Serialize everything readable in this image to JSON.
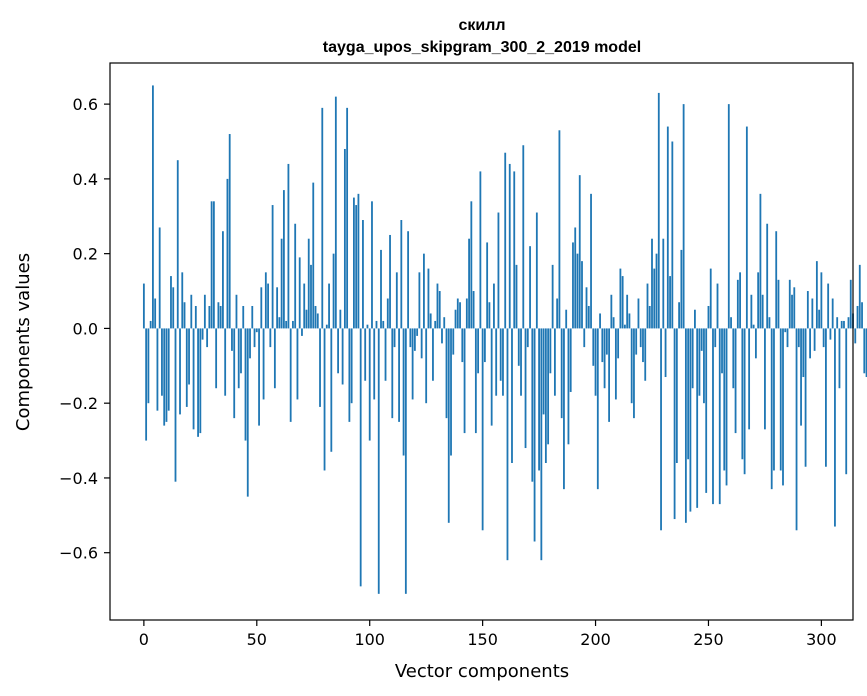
{
  "chart_data": {
    "type": "bar",
    "title": "скилл",
    "subtitle": "tayga_upos_skipgram_300_2_2019 model",
    "xlabel": "Vector components",
    "ylabel": "Components values",
    "xlim": [
      -15,
      314
    ],
    "ylim": [
      -0.78,
      0.71
    ],
    "x_ticks": [
      0,
      50,
      100,
      150,
      200,
      250,
      300
    ],
    "y_ticks": [
      -0.6,
      -0.4,
      -0.2,
      0.0,
      0.2,
      0.4,
      0.6
    ],
    "x_tick_labels": [
      "0",
      "50",
      "100",
      "150",
      "200",
      "250",
      "300"
    ],
    "y_tick_labels": [
      "−0.6",
      "−0.4",
      "−0.2",
      "0.0",
      "0.2",
      "0.4",
      "0.6"
    ],
    "bar_color": "#1f77b4",
    "values": [
      0.12,
      -0.3,
      -0.2,
      0.02,
      0.65,
      0.08,
      -0.22,
      0.27,
      -0.18,
      -0.26,
      -0.25,
      -0.22,
      0.14,
      0.11,
      -0.41,
      0.45,
      -0.23,
      0.15,
      0.07,
      -0.21,
      -0.15,
      0.09,
      -0.27,
      0.06,
      -0.29,
      -0.28,
      -0.03,
      0.09,
      -0.05,
      0.06,
      0.34,
      0.34,
      -0.16,
      0.07,
      0.06,
      0.26,
      -0.18,
      0.4,
      0.52,
      -0.06,
      -0.24,
      0.09,
      -0.16,
      -0.12,
      0.06,
      -0.3,
      -0.45,
      -0.08,
      0.06,
      -0.05,
      -0.01,
      -0.26,
      0.11,
      -0.19,
      0.15,
      0.12,
      -0.05,
      0.33,
      -0.16,
      0.11,
      0.03,
      0.24,
      0.37,
      0.02,
      0.44,
      -0.25,
      0.02,
      0.28,
      -0.19,
      0.19,
      -0.02,
      0.12,
      0.05,
      0.24,
      0.17,
      0.39,
      0.06,
      0.04,
      -0.21,
      0.59,
      -0.38,
      0.01,
      0.12,
      -0.33,
      0.2,
      0.62,
      -0.12,
      0.05,
      -0.15,
      0.48,
      0.59,
      -0.25,
      -0.2,
      0.35,
      0.33,
      0.36,
      -0.69,
      0.29,
      -0.14,
      0.01,
      -0.3,
      0.34,
      -0.19,
      0.02,
      -0.71,
      0.21,
      0.02,
      -0.14,
      0.08,
      0.25,
      -0.24,
      -0.05,
      0.15,
      -0.25,
      0.29,
      -0.34,
      -0.71,
      0.26,
      -0.05,
      -0.19,
      -0.06,
      -0.02,
      0.15,
      -0.08,
      0.2,
      -0.2,
      0.16,
      0.04,
      -0.14,
      0.02,
      0.12,
      0.1,
      -0.04,
      0.03,
      -0.24,
      -0.52,
      -0.34,
      -0.07,
      0.05,
      0.08,
      0.07,
      -0.09,
      -0.28,
      0.08,
      0.24,
      0.34,
      0.1,
      -0.28,
      -0.12,
      0.42,
      -0.54,
      -0.09,
      0.23,
      0.07,
      -0.26,
      0.12,
      -0.18,
      0.31,
      -0.14,
      -0.18,
      0.47,
      -0.62,
      0.44,
      -0.36,
      0.42,
      0.17,
      -0.1,
      -0.18,
      0.49,
      -0.32,
      -0.05,
      0.22,
      -0.41,
      -0.57,
      0.31,
      -0.38,
      -0.62,
      -0.23,
      -0.36,
      -0.31,
      -0.12,
      0.17,
      -0.18,
      0.08,
      0.53,
      -0.24,
      -0.43,
      0.05,
      -0.31,
      -0.17,
      0.23,
      0.27,
      0.2,
      0.41,
      0.18,
      -0.05,
      0.11,
      0.06,
      0.36,
      -0.1,
      -0.18,
      -0.43,
      0.04,
      -0.09,
      -0.16,
      -0.07,
      -0.25,
      0.09,
      0.03,
      -0.19,
      -0.08,
      0.16,
      0.14,
      0.01,
      0.09,
      0.04,
      -0.2,
      -0.24,
      -0.07,
      0.08,
      -0.05,
      -0.09,
      -0.14,
      0.12,
      0.06,
      0.24,
      0.16,
      0.2,
      0.63,
      -0.54,
      0.24,
      -0.13,
      0.54,
      0.14,
      0.5,
      -0.51,
      -0.36,
      0.07,
      0.21,
      0.6,
      -0.52,
      -0.35,
      -0.49,
      -0.16,
      0.05,
      -0.48,
      -0.18,
      -0.06,
      -0.2,
      -0.44,
      0.06,
      0.16,
      -0.47,
      -0.05,
      0.12,
      -0.47,
      -0.12,
      -0.38,
      -0.42,
      0.6,
      0.03,
      -0.16,
      -0.28,
      0.13,
      0.15,
      -0.35,
      -0.39,
      0.54,
      -0.27,
      0.09,
      0.01,
      -0.08,
      0.15,
      0.36,
      0.09,
      -0.27,
      0.28,
      0.03,
      -0.43,
      -0.38,
      0.26,
      0.13,
      -0.38,
      -0.42,
      -0.01,
      -0.05,
      0.13,
      0.09,
      0.11,
      -0.54,
      -0.05,
      -0.26,
      -0.13,
      -0.37,
      0.1,
      -0.08,
      0.08,
      -0.06,
      0.18,
      0.05,
      0.15,
      -0.05,
      -0.37,
      0.12,
      -0.03,
      0.08,
      -0.53,
      0.03,
      -0.16,
      0.02,
      0.02,
      -0.39,
      0.03,
      0.13,
      0.04,
      -0.04,
      0.06,
      0.17,
      0.07,
      -0.12,
      -0.13
    ]
  }
}
